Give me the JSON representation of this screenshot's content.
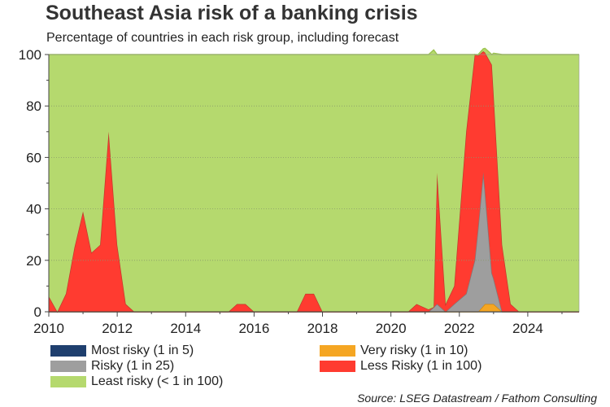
{
  "title": "Southeast Asia risk of a banking crisis",
  "subtitle": "Percentage of countries in each risk group, including forecast",
  "source": "Source: LSEG Datastream / Fathom Consulting",
  "chart_data": {
    "type": "area",
    "stacked": true,
    "ylim": [
      0,
      100
    ],
    "xlim": [
      2010,
      2025.5
    ],
    "x_ticks": [
      2010,
      2012,
      2014,
      2016,
      2018,
      2020,
      2022,
      2024
    ],
    "y_ticks": [
      0,
      20,
      40,
      60,
      80,
      100
    ],
    "x_tick_labels": [
      "2010",
      "2012",
      "2014",
      "2016",
      "2018",
      "2020",
      "2022",
      "2024"
    ],
    "y_tick_labels": [
      "0",
      "20",
      "40",
      "60",
      "80",
      "100"
    ],
    "grid": "horizontal dotted",
    "legend_position": "bottom",
    "series": [
      {
        "name": "Most risky (1 in 5)",
        "color": "#1f3f6e",
        "points": [
          [
            2010,
            0
          ],
          [
            2025.5,
            0
          ]
        ]
      },
      {
        "name": "Very risky (1 in 10)",
        "color": "#f5a623",
        "points": [
          [
            2010,
            0
          ],
          [
            2022.55,
            0
          ],
          [
            2022.75,
            3
          ],
          [
            2023.0,
            3
          ],
          [
            2023.25,
            0
          ],
          [
            2025.5,
            0
          ]
        ]
      },
      {
        "name": "Risky (1 in 25)",
        "color": "#9e9e9e",
        "points": [
          [
            2010,
            0
          ],
          [
            2021.1,
            0
          ],
          [
            2021.35,
            3
          ],
          [
            2021.6,
            0
          ],
          [
            2021.85,
            3
          ],
          [
            2022.2,
            7
          ],
          [
            2022.45,
            20
          ],
          [
            2022.7,
            52
          ],
          [
            2022.95,
            12
          ],
          [
            2023.25,
            0
          ],
          [
            2025.5,
            0
          ]
        ]
      },
      {
        "name": "Less Risky (1 in 100)",
        "color": "#ff3b30",
        "points": [
          [
            2010,
            6
          ],
          [
            2010.25,
            0
          ],
          [
            2010.5,
            7
          ],
          [
            2010.75,
            25
          ],
          [
            2011.0,
            39
          ],
          [
            2011.25,
            23
          ],
          [
            2011.5,
            26
          ],
          [
            2011.75,
            70
          ],
          [
            2012.0,
            26
          ],
          [
            2012.25,
            3
          ],
          [
            2012.5,
            0
          ],
          [
            2015.25,
            0
          ],
          [
            2015.5,
            3
          ],
          [
            2015.75,
            3
          ],
          [
            2016.0,
            0
          ],
          [
            2017.25,
            0
          ],
          [
            2017.5,
            7
          ],
          [
            2017.75,
            7
          ],
          [
            2018.0,
            0
          ],
          [
            2020.5,
            0
          ],
          [
            2020.75,
            3
          ],
          [
            2021.25,
            0
          ],
          [
            2021.35,
            51
          ],
          [
            2021.6,
            3
          ],
          [
            2021.85,
            7
          ],
          [
            2022.2,
            63
          ],
          [
            2022.45,
            80
          ],
          [
            2022.7,
            47
          ],
          [
            2022.95,
            81
          ],
          [
            2023.25,
            26
          ],
          [
            2023.5,
            3
          ],
          [
            2023.75,
            0
          ],
          [
            2025.5,
            0
          ]
        ]
      },
      {
        "name": "Least risky (< 1 in 100)",
        "color": "#b5d96e",
        "points": [
          [
            2010,
            94
          ],
          [
            2010.25,
            100
          ],
          [
            2010.5,
            93
          ],
          [
            2010.75,
            75
          ],
          [
            2011.0,
            61
          ],
          [
            2011.25,
            77
          ],
          [
            2011.5,
            74
          ],
          [
            2011.75,
            30
          ],
          [
            2012.0,
            74
          ],
          [
            2012.25,
            97
          ],
          [
            2012.5,
            100
          ],
          [
            2015.25,
            100
          ],
          [
            2015.5,
            97
          ],
          [
            2015.75,
            97
          ],
          [
            2016.0,
            100
          ],
          [
            2017.25,
            100
          ],
          [
            2017.5,
            93
          ],
          [
            2017.75,
            93
          ],
          [
            2018.0,
            100
          ],
          [
            2020.5,
            100
          ],
          [
            2020.75,
            97
          ],
          [
            2021.25,
            100
          ],
          [
            2021.35,
            46
          ],
          [
            2021.6,
            97
          ],
          [
            2021.85,
            90
          ],
          [
            2022.2,
            30
          ],
          [
            2022.45,
            0
          ],
          [
            2022.7,
            1
          ],
          [
            2022.95,
            4
          ],
          [
            2023.25,
            74
          ],
          [
            2023.5,
            97
          ],
          [
            2023.75,
            100
          ],
          [
            2025.5,
            100
          ]
        ]
      }
    ]
  }
}
